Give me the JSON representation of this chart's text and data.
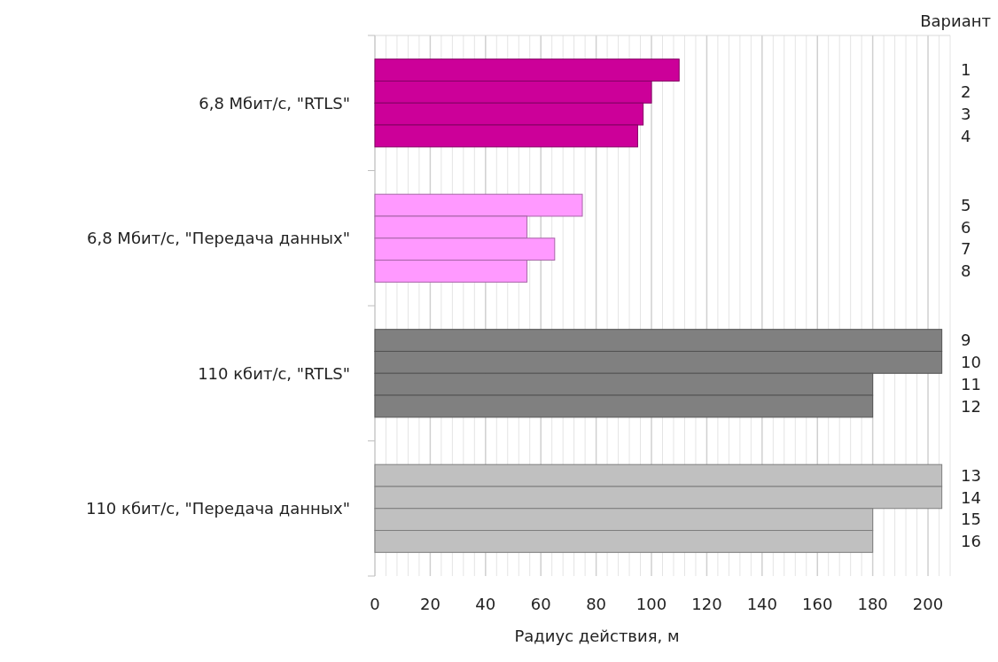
{
  "chart_data": {
    "type": "bar",
    "orientation": "horizontal",
    "categories": [
      "1",
      "2",
      "3",
      "4",
      "5",
      "6",
      "7",
      "8",
      "9",
      "10",
      "11",
      "12",
      "13",
      "14",
      "15",
      "16"
    ],
    "values": [
      110,
      100,
      97,
      95,
      75,
      55,
      65,
      55,
      205,
      205,
      180,
      180,
      205,
      205,
      180,
      180
    ],
    "colors": [
      "#cc0099",
      "#cc0099",
      "#cc0099",
      "#cc0099",
      "#ff99ff",
      "#ff99ff",
      "#ff99ff",
      "#ff99ff",
      "#808080",
      "#808080",
      "#808080",
      "#808080",
      "#c0c0c0",
      "#c0c0c0",
      "#c0c0c0",
      "#c0c0c0"
    ],
    "annotations": [
      "6,8 Мбит/с, \"RTLS\"",
      "6,8 Мбит/с, \"Передача данных\"",
      "110 кбит/с, \"RTLS\"",
      "110 кбит/с, \"Передача данных\""
    ],
    "ylabel": "Вариант",
    "xlabel": "Радиус действия, м",
    "xlim": [
      0,
      208
    ],
    "xticks": [
      0,
      {
        "value": 4,
        "label": null
      },
      {
        "value": 8,
        "label": null
      },
      {
        "value": 12,
        "label": null
      },
      {
        "value": 16,
        "label": null
      },
      20,
      {
        "value": 24,
        "label": null
      },
      {
        "value": 28,
        "label": null
      },
      {
        "value": 32,
        "label": null
      },
      {
        "value": 36,
        "label": null
      },
      40,
      {
        "value": 44,
        "label": null
      },
      {
        "value": 48,
        "label": null
      },
      {
        "value": 52,
        "label": null
      },
      {
        "value": 56,
        "label": null
      },
      60,
      {
        "value": 64,
        "label": null
      },
      {
        "value": 68,
        "label": null
      },
      {
        "value": 72,
        "label": null
      },
      {
        "value": 76,
        "label": null
      },
      80,
      {
        "value": 84,
        "label": null
      },
      {
        "value": 88,
        "label": null
      },
      {
        "value": 92,
        "label": null
      },
      {
        "value": 96,
        "label": null
      },
      100,
      {
        "value": 104,
        "label": null
      },
      {
        "value": 108,
        "label": null
      },
      {
        "value": 112,
        "label": null
      },
      {
        "value": 116,
        "label": null
      },
      120,
      {
        "value": 124,
        "label": null
      },
      {
        "value": 128,
        "label": null
      },
      {
        "value": 132,
        "label": null
      },
      {
        "value": 136,
        "label": null
      },
      140,
      {
        "value": 144,
        "label": null
      },
      {
        "value": 148,
        "label": null
      },
      {
        "value": 152,
        "label": null
      },
      {
        "value": 156,
        "label": null
      },
      160,
      {
        "value": 164,
        "label": null
      },
      {
        "value": 168,
        "label": null
      },
      {
        "value": 172,
        "label": null
      },
      {
        "value": 176,
        "label": null
      },
      180,
      {
        "value": 184,
        "label": null
      },
      {
        "value": 188,
        "label": null
      },
      {
        "value": 192,
        "label": null
      },
      {
        "value": 196,
        "label": null
      },
      200,
      {
        "value": 204,
        "label": null
      },
      {
        "value": 208,
        "label": null
      }
    ],
    "grid": "x"
  }
}
